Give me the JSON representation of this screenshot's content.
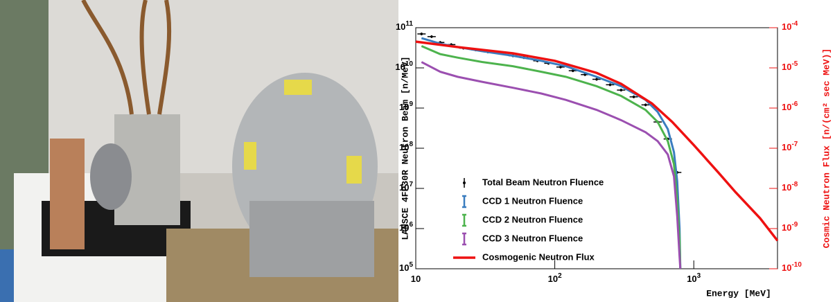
{
  "chart_data": {
    "type": "line",
    "x_label": "Energy [MeV]",
    "y_label": "LANSCE 4FP30R Neutron Beam [n/MeV]",
    "y2_label": "Cosmic Neutron Flux [n/(cm² sec MeV)]",
    "log_x": true,
    "log_y": true,
    "legend": "lower left",
    "xlim": [
      10,
      4000
    ],
    "xticks": [
      10,
      {
        "value": 100,
        "label": "10^2"
      },
      {
        "value": 1000,
        "label": "10^3"
      }
    ],
    "ylim": [
      100000,
      100000000000
    ],
    "yticks": [
      {
        "value": 100000,
        "label": "10^5"
      },
      {
        "value": 1000000,
        "label": "10^6"
      },
      {
        "value": 10000000,
        "label": "10^7"
      },
      {
        "value": 100000000,
        "label": "10^8"
      },
      {
        "value": 1000000000,
        "label": "10^9"
      },
      {
        "value": 10000000000,
        "label": "10^10"
      },
      {
        "value": 100000000000,
        "label": "10^11"
      }
    ],
    "y2lim": [
      1e-10,
      0.0001
    ],
    "y2ticks": [
      {
        "value": 1e-10,
        "label": "10^-10"
      },
      {
        "value": 1e-09,
        "label": "10^-9"
      },
      {
        "value": 1e-08,
        "label": "10^-8"
      },
      {
        "value": 1e-07,
        "label": "10^-7"
      },
      {
        "value": 1e-06,
        "label": "10^-6"
      },
      {
        "value": 1e-05,
        "label": "10^-5"
      },
      {
        "value": 0.0001,
        "label": "10^-4"
      }
    ],
    "series": [
      {
        "name": "Total Beam Neutron Fluence",
        "color": "#000000",
        "style": "points",
        "x": [
          11,
          13,
          15,
          18,
          22,
          27,
          33,
          40,
          50,
          60,
          75,
          90,
          110,
          135,
          165,
          200,
          250,
          300,
          370,
          450,
          550,
          650,
          760
        ],
        "values": [
          70000000000,
          60000000000,
          43000000000,
          38000000000,
          31000000000,
          28000000000,
          25000000000,
          23000000000,
          20000000000,
          18000000000,
          15000000000,
          13000000000,
          10500000000,
          8500000000,
          6800000000,
          5200000000,
          3800000000,
          2800000000,
          1900000000,
          1200000000,
          450000000,
          170000000,
          25000000
        ]
      },
      {
        "name": "CCD 1 Neutron Fluence",
        "color": "#3a7dbf",
        "style": "line",
        "x": [
          11,
          15,
          20,
          30,
          50,
          80,
          120,
          200,
          300,
          450,
          550,
          650,
          720,
          760,
          790,
          800
        ],
        "values": [
          55000000000,
          40000000000,
          33000000000,
          26000000000,
          20000000000,
          15000000000,
          11000000000,
          6000000000,
          3500000000,
          1600000000,
          800000000,
          300000000,
          80000000,
          15000000,
          1000000,
          100000
        ]
      },
      {
        "name": "CCD 2 Neutron Fluence",
        "color": "#4db34d",
        "style": "line",
        "x": [
          11,
          15,
          20,
          30,
          50,
          80,
          120,
          200,
          300,
          450,
          550,
          650,
          720,
          760,
          790,
          800
        ],
        "values": [
          35000000000,
          22000000000,
          18000000000,
          14000000000,
          11000000000,
          8000000000,
          6000000000,
          3500000000,
          2000000000,
          900000000,
          450000000,
          150000000,
          40000000,
          5000000,
          500000,
          100000
        ]
      },
      {
        "name": "CCD 3 Neutron Fluence",
        "color": "#9b4fb0",
        "style": "line",
        "x": [
          11,
          15,
          20,
          30,
          50,
          80,
          120,
          200,
          300,
          450,
          550,
          650,
          720,
          760,
          790,
          800
        ],
        "values": [
          14000000000,
          8000000000,
          6000000000,
          4500000000,
          3200000000,
          2300000000,
          1600000000,
          900000000,
          500000000,
          250000000,
          150000000,
          70000000,
          20000000,
          2000000,
          200000,
          100000
        ]
      },
      {
        "name": "Cosmogenic Neutron Flux",
        "color": "#ee1111",
        "style": "line",
        "axis": "y2",
        "x": [
          10,
          20,
          50,
          100,
          200,
          300,
          500,
          700,
          1000,
          1500,
          2000,
          3000,
          4000
        ],
        "values": [
          4.5e-05,
          3.3e-05,
          2.3e-05,
          1.5e-05,
          7.5e-06,
          4e-06,
          1.3e-06,
          4.5e-07,
          1.2e-07,
          2.5e-08,
          8e-09,
          1.8e-09,
          5e-10
        ]
      }
    ]
  }
}
